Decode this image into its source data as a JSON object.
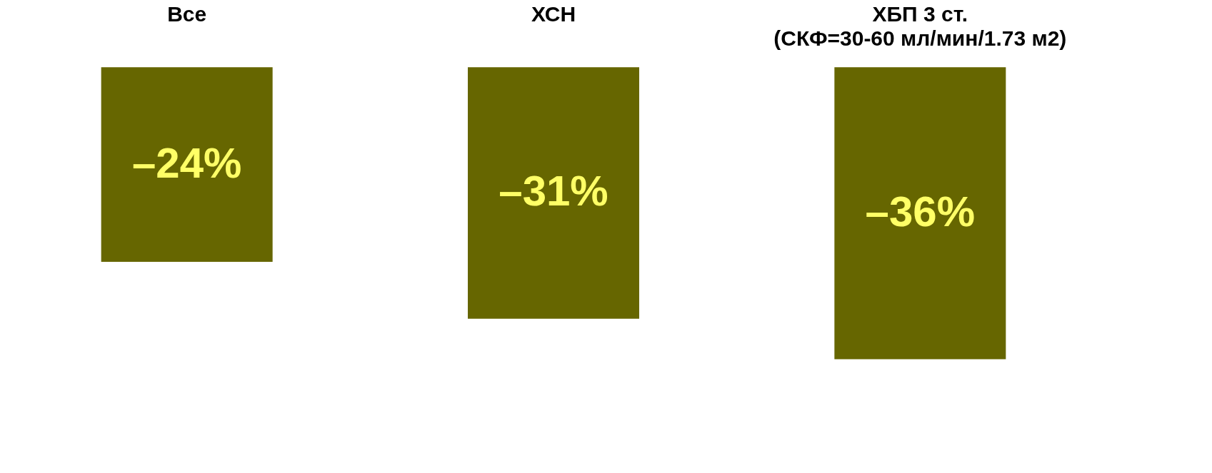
{
  "chart_data": {
    "type": "bar",
    "categories": [
      "Все",
      "ХСН",
      "ХБП 3 ст.\n(СКФ=30-60 мл/мин/1.73 м2)"
    ],
    "values": [
      -24,
      -31,
      -36
    ],
    "value_labels": [
      "–24%",
      "–31%",
      "–36%"
    ],
    "color": "#666600"
  }
}
